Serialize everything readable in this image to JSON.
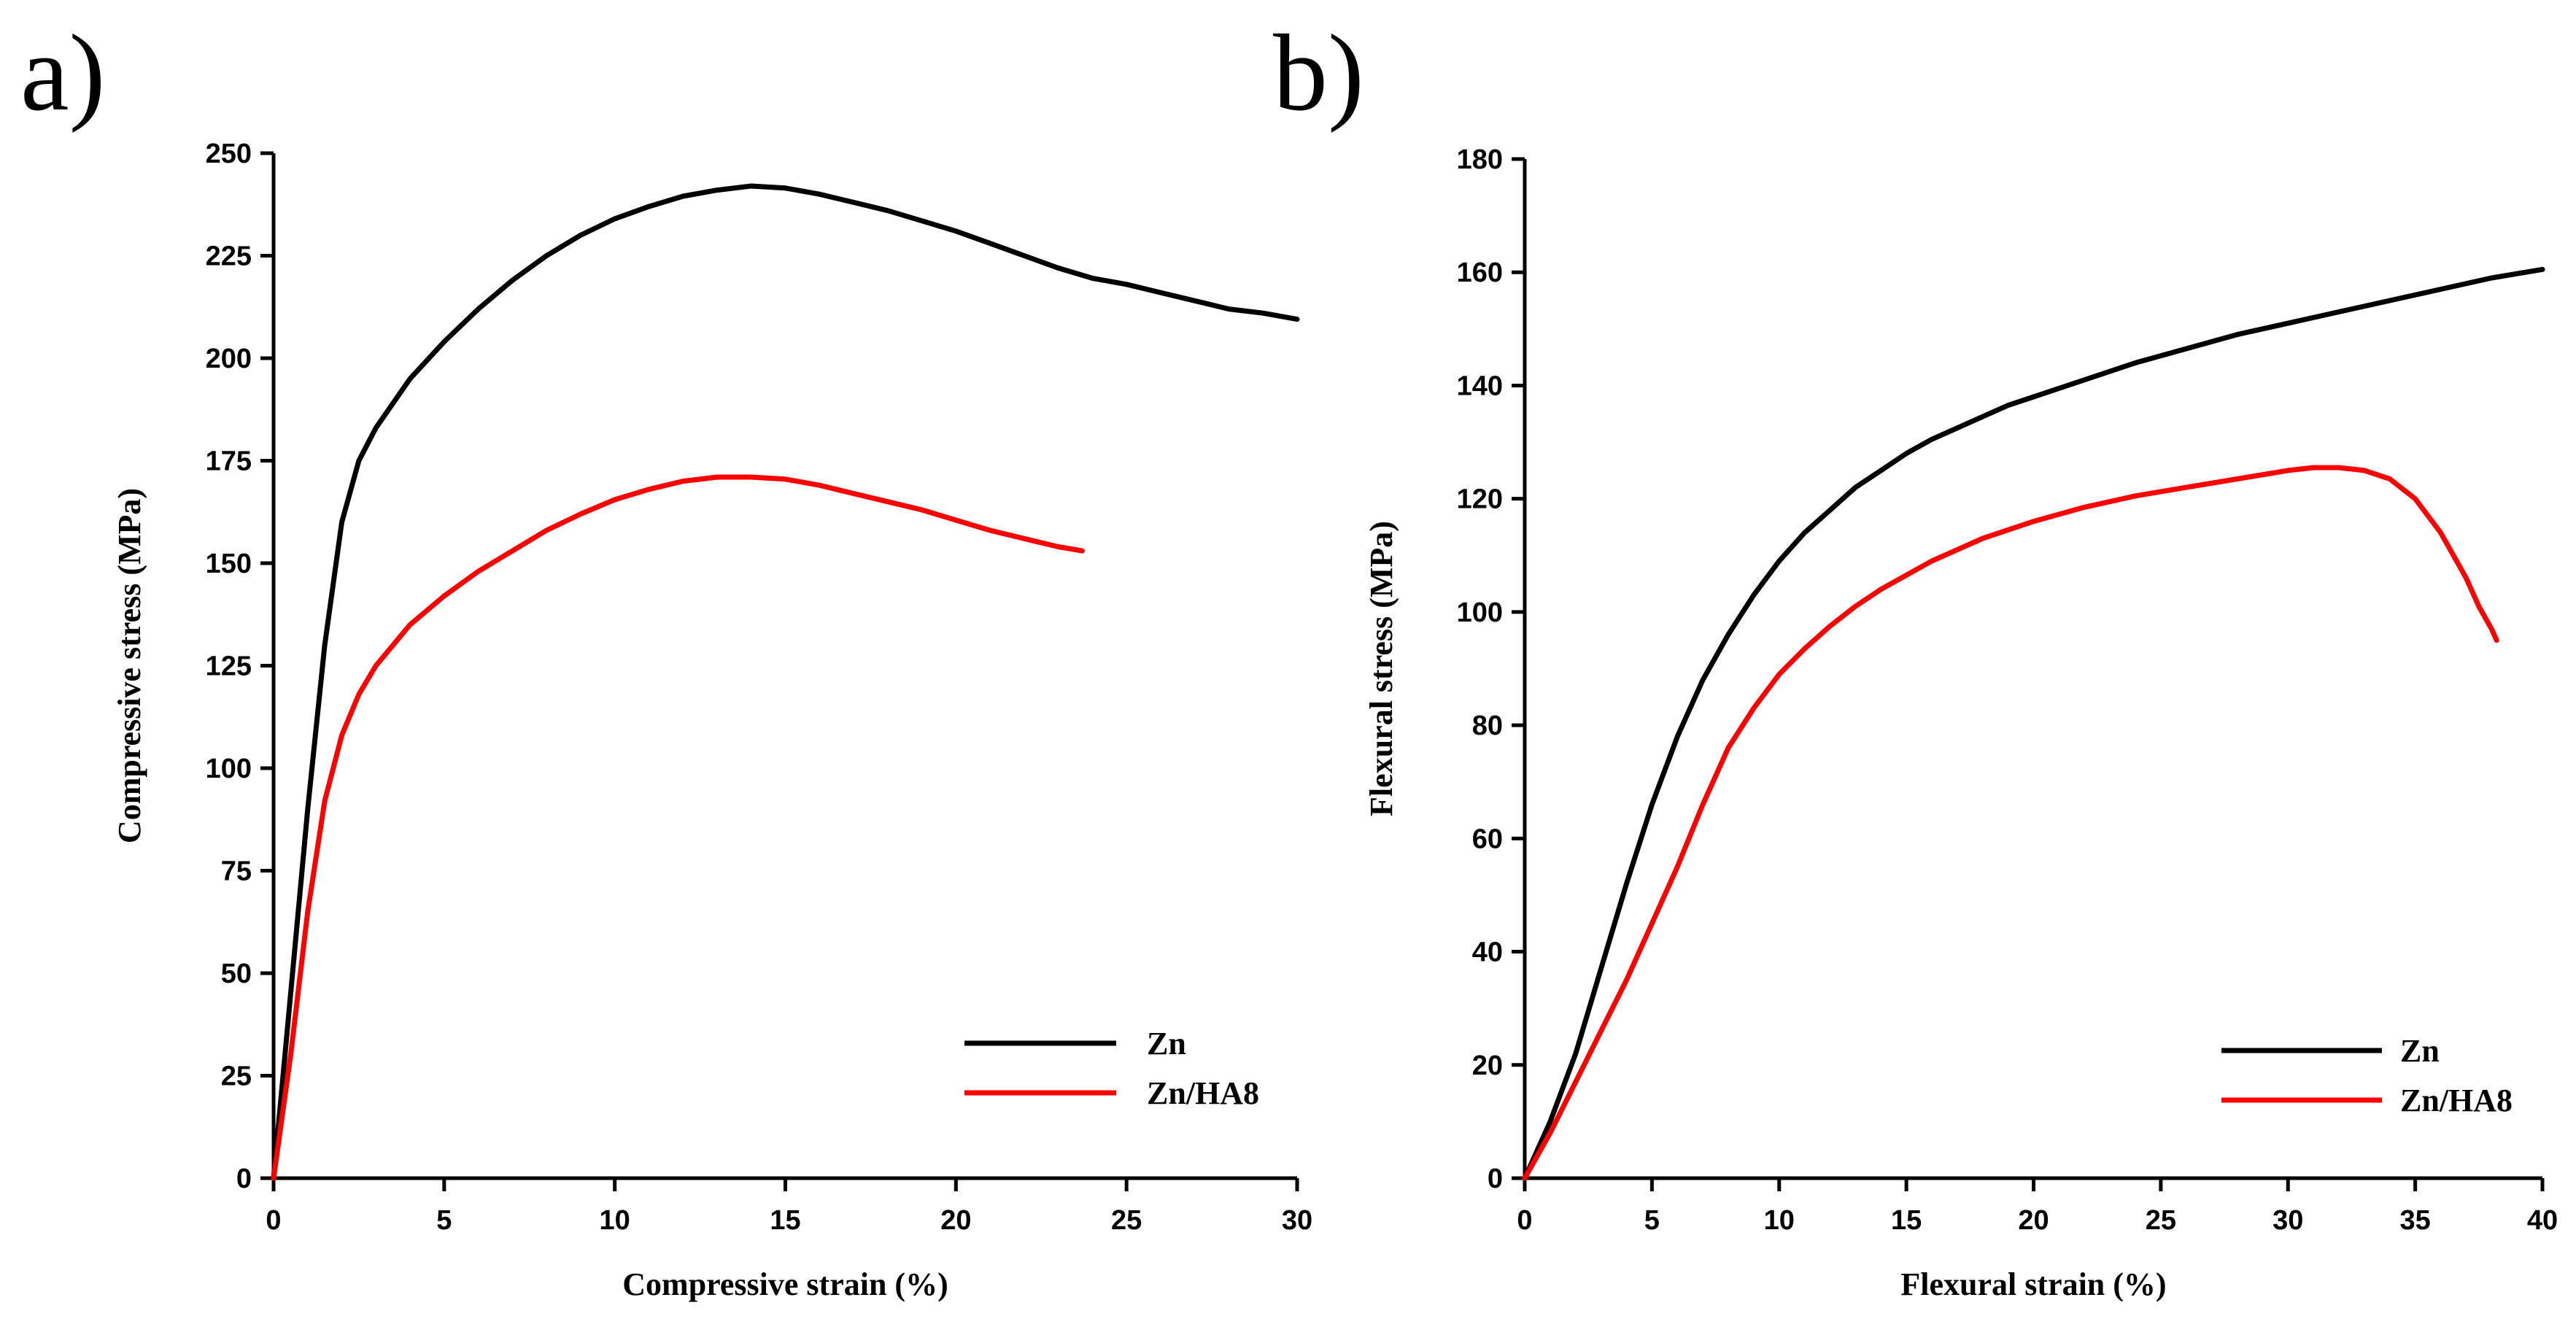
{
  "chart_data": [
    {
      "type": "line",
      "panel_label": "a)",
      "xlabel": "Compressive strain (%)",
      "ylabel": "Compressive stress (MPa)",
      "xlim": [
        0,
        30
      ],
      "ylim": [
        0,
        250
      ],
      "xticks": [
        0,
        5,
        10,
        15,
        20,
        25,
        30
      ],
      "yticks": [
        0,
        25,
        50,
        75,
        100,
        125,
        150,
        175,
        200,
        225,
        250
      ],
      "legend_position": "bottom-right",
      "series": [
        {
          "name": "Zn",
          "color": "#000000",
          "x": [
            0,
            0.5,
            1,
            1.5,
            2,
            2.5,
            3,
            4,
            5,
            6,
            7,
            8,
            9,
            10,
            11,
            12,
            13,
            14,
            15,
            16,
            17,
            18,
            19,
            20,
            21,
            22,
            23,
            24,
            25,
            26,
            27,
            28,
            29,
            30
          ],
          "y": [
            0,
            45,
            90,
            130,
            160,
            175,
            183,
            195,
            204,
            212,
            219,
            225,
            230,
            234,
            237,
            239.5,
            241,
            242,
            241.5,
            240,
            238,
            236,
            233.5,
            231,
            228,
            225,
            222,
            219.5,
            218,
            216,
            214,
            212,
            211,
            209.5
          ]
        },
        {
          "name": "Zn/HA8",
          "color": "#ff0000",
          "x": [
            0,
            0.5,
            1,
            1.5,
            2,
            2.5,
            3,
            4,
            5,
            6,
            7,
            8,
            9,
            10,
            11,
            12,
            13,
            14,
            15,
            16,
            17,
            18,
            19,
            20,
            21,
            22,
            23,
            23.7
          ],
          "y": [
            0,
            30,
            65,
            92,
            108,
            118,
            125,
            135,
            142,
            148,
            153,
            158,
            162,
            165.5,
            168,
            170,
            171,
            171,
            170.5,
            169,
            167,
            165,
            163,
            160.5,
            158,
            156,
            154,
            153
          ]
        }
      ]
    },
    {
      "type": "line",
      "panel_label": "b)",
      "xlabel": "Flexural strain (%)",
      "ylabel": "Flexural stress (MPa)",
      "xlim": [
        0,
        40
      ],
      "ylim": [
        0,
        180
      ],
      "xticks": [
        0,
        5,
        10,
        15,
        20,
        25,
        30,
        35,
        40
      ],
      "yticks": [
        0,
        20,
        40,
        60,
        80,
        100,
        120,
        140,
        160,
        180
      ],
      "legend_position": "bottom-right",
      "series": [
        {
          "name": "Zn",
          "color": "#000000",
          "x": [
            0,
            1,
            2,
            3,
            4,
            5,
            6,
            7,
            8,
            9,
            10,
            11,
            12,
            13,
            14,
            15,
            16,
            17,
            18,
            19,
            20,
            22,
            24,
            26,
            28,
            30,
            32,
            34,
            36,
            38,
            40
          ],
          "y": [
            0,
            10,
            22,
            37,
            52,
            66,
            78,
            88,
            96,
            103,
            109,
            114,
            118,
            122,
            125,
            128,
            130.5,
            132.5,
            134.5,
            136.5,
            138,
            141,
            144,
            146.5,
            149,
            151,
            153,
            155,
            157,
            159,
            160.5
          ]
        },
        {
          "name": "Zn/HA8",
          "color": "#ff0000",
          "x": [
            0,
            1,
            2,
            3,
            4,
            5,
            6,
            7,
            8,
            9,
            10,
            11,
            12,
            13,
            14,
            15,
            16,
            18,
            20,
            22,
            24,
            26,
            28,
            30,
            31,
            32,
            33,
            34,
            35,
            36,
            37,
            37.5,
            38,
            38.2
          ],
          "y": [
            0,
            8,
            17,
            26,
            35,
            45,
            55,
            66,
            76,
            83,
            89,
            93.5,
            97.5,
            101,
            104,
            106.5,
            109,
            113,
            116,
            118.5,
            120.5,
            122,
            123.5,
            125,
            125.5,
            125.5,
            125,
            123.5,
            120,
            114,
            106,
            101,
            97,
            95
          ]
        }
      ]
    }
  ]
}
